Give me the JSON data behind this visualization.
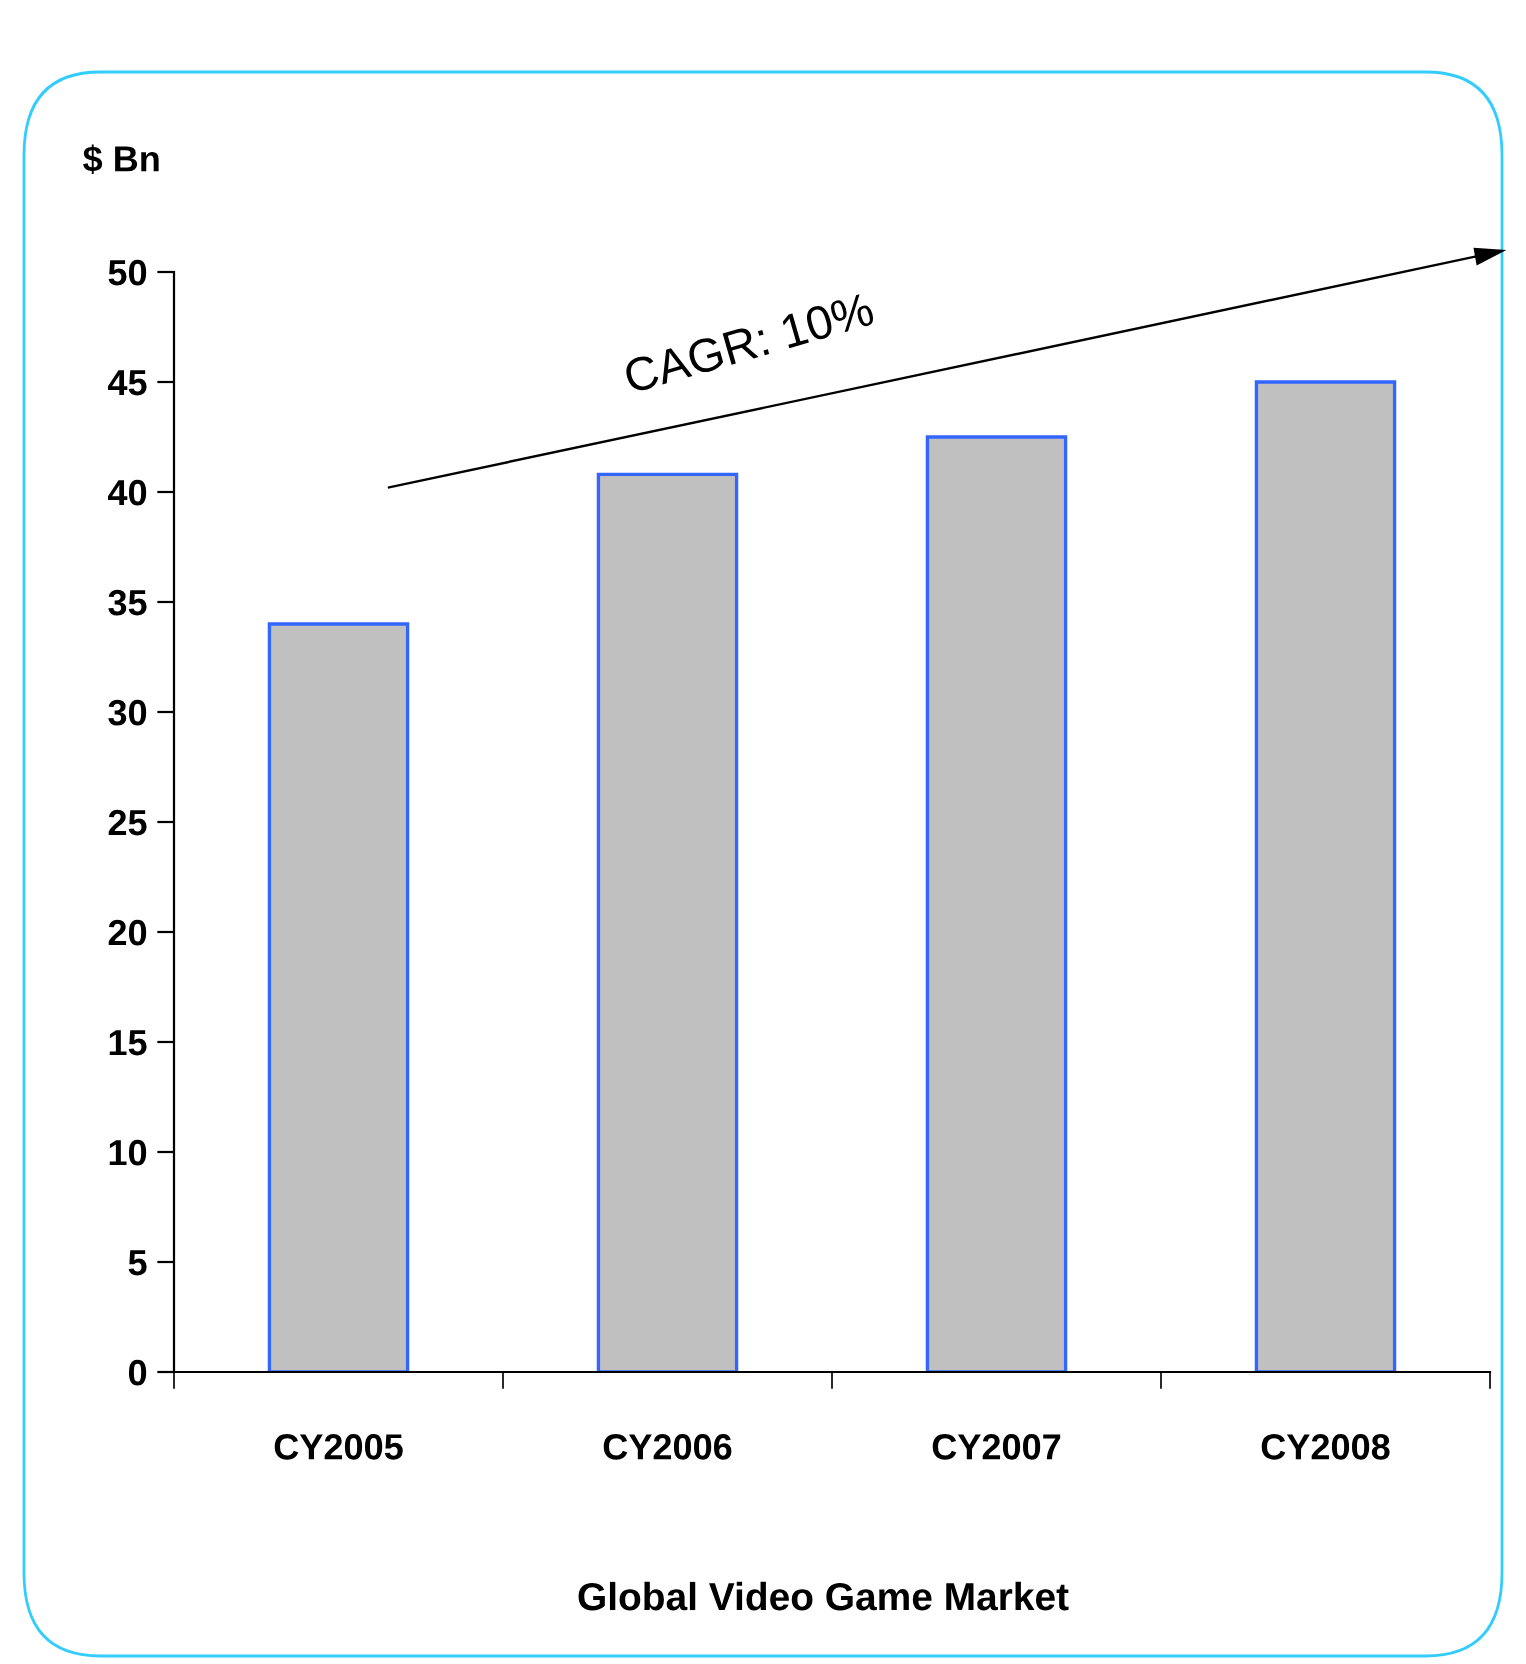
{
  "chart_data": {
    "type": "bar",
    "title": "Global Video Game Market",
    "ylabel": "$ Bn",
    "categories": [
      "CY2005",
      "CY2006",
      "CY2007",
      "CY2008"
    ],
    "values": [
      34.0,
      40.8,
      42.5,
      45.0
    ],
    "color": "#c0c0c0",
    "ylim": [
      0,
      50
    ],
    "yticks": [
      0,
      5,
      10,
      15,
      20,
      25,
      30,
      35,
      40,
      45,
      50
    ],
    "grid": false,
    "legend": false,
    "annotations": [
      "CAGR: 10%"
    ]
  }
}
